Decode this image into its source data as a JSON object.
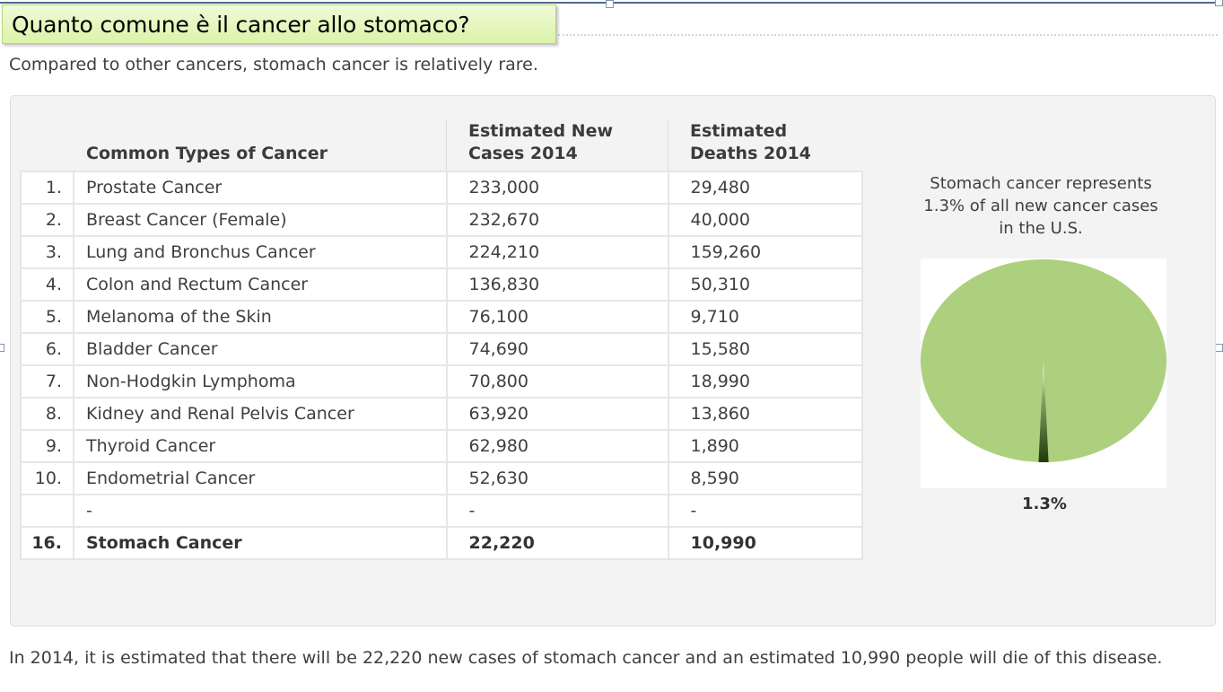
{
  "slide": {
    "title": "Quanto comune è il cancer allo stomaco?",
    "intro": "Compared to other cancers, stomach cancer is relatively rare.",
    "summary": "In 2014, it is estimated that there will be 22,220 new cases of stomach cancer and an estimated 10,990 people will die of this disease."
  },
  "table": {
    "headers": {
      "type": "Common Types of Cancer",
      "new_cases_line1": "Estimated New",
      "new_cases_line2": "Cases 2014",
      "deaths_line1": "Estimated",
      "deaths_line2": "Deaths 2014"
    },
    "rows": [
      {
        "rank": "1.",
        "name": "Prostate Cancer",
        "new_cases": "233,000",
        "deaths": "29,480"
      },
      {
        "rank": "2.",
        "name": "Breast Cancer (Female)",
        "new_cases": "232,670",
        "deaths": "40,000"
      },
      {
        "rank": "3.",
        "name": "Lung and Bronchus Cancer",
        "new_cases": "224,210",
        "deaths": "159,260"
      },
      {
        "rank": "4.",
        "name": "Colon and Rectum Cancer",
        "new_cases": "136,830",
        "deaths": "50,310"
      },
      {
        "rank": "5.",
        "name": "Melanoma of the Skin",
        "new_cases": "76,100",
        "deaths": "9,710"
      },
      {
        "rank": "6.",
        "name": "Bladder Cancer",
        "new_cases": "74,690",
        "deaths": "15,580"
      },
      {
        "rank": "7.",
        "name": "Non-Hodgkin Lymphoma",
        "new_cases": "70,800",
        "deaths": "18,990"
      },
      {
        "rank": "8.",
        "name": "Kidney and Renal Pelvis Cancer",
        "new_cases": "63,920",
        "deaths": "13,860"
      },
      {
        "rank": "9.",
        "name": "Thyroid Cancer",
        "new_cases": "62,980",
        "deaths": "1,890"
      },
      {
        "rank": "10.",
        "name": "Endometrial Cancer",
        "new_cases": "52,630",
        "deaths": "8,590"
      },
      {
        "rank": "",
        "name": "-",
        "new_cases": "-",
        "deaths": "-"
      },
      {
        "rank": "16.",
        "name": "Stomach Cancer",
        "new_cases": "22,220",
        "deaths": "10,990",
        "bold": true
      }
    ]
  },
  "pie": {
    "caption_line1": "Stomach cancer represents",
    "caption_line2": "1.3% of all new cancer cases",
    "caption_line3": "in the U.S.",
    "label": "1.3%",
    "stomach_percent": 1.3,
    "colors": {
      "other": "#acd07d",
      "stomach": "#2e4a14",
      "frame": "#4e6b8f",
      "title_fill": "#dbf3a9"
    }
  }
}
